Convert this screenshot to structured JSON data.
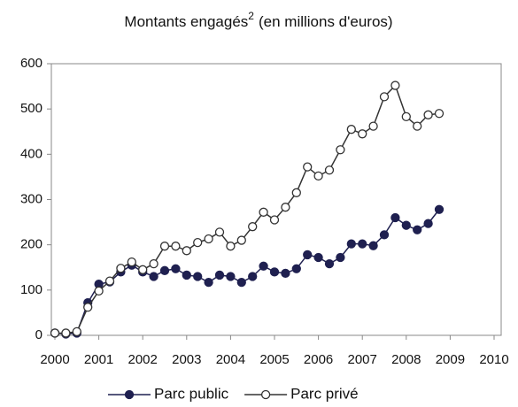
{
  "chart_data": {
    "type": "line",
    "title": {
      "text": "Montants engagés",
      "superscript": "2",
      "text_after": "(en millions d'euros)"
    },
    "x": [
      2000,
      2000.25,
      2000.5,
      2000.75,
      2001,
      2001.25,
      2001.5,
      2001.75,
      2002,
      2002.25,
      2002.5,
      2002.75,
      2003,
      2003.25,
      2003.5,
      2003.75,
      2004,
      2004.25,
      2004.5,
      2004.75,
      2005,
      2005.25,
      2005.5,
      2005.75,
      2006,
      2006.25,
      2006.5,
      2006.75,
      2007,
      2007.25,
      2007.5,
      2007.75,
      2008,
      2008.25,
      2008.5,
      2008.75
    ],
    "series": [
      {
        "name": "Parc public",
        "color": "#1f2050",
        "marker": "filled",
        "values": [
          5,
          3,
          5,
          72,
          113,
          118,
          140,
          155,
          140,
          130,
          143,
          147,
          133,
          130,
          117,
          133,
          130,
          117,
          130,
          153,
          140,
          137,
          147,
          178,
          172,
          158,
          172,
          202,
          202,
          198,
          222,
          260,
          243,
          233,
          247,
          278
        ]
      },
      {
        "name": "Parc privé",
        "color": "#333333",
        "marker": "hollow",
        "values": [
          5,
          5,
          8,
          62,
          98,
          120,
          148,
          162,
          145,
          158,
          197,
          197,
          187,
          205,
          213,
          228,
          197,
          210,
          240,
          272,
          255,
          283,
          315,
          372,
          352,
          365,
          410,
          455,
          445,
          462,
          527,
          552,
          483,
          462,
          487,
          490
        ]
      }
    ],
    "xlim": [
      2000,
      2010
    ],
    "xticks": [
      2000,
      2001,
      2002,
      2003,
      2004,
      2005,
      2006,
      2007,
      2008,
      2009,
      2010
    ],
    "ylim": [
      0,
      600
    ],
    "yticks": [
      0,
      100,
      200,
      300,
      400,
      500,
      600
    ],
    "grid": false,
    "legend": "bottom"
  }
}
